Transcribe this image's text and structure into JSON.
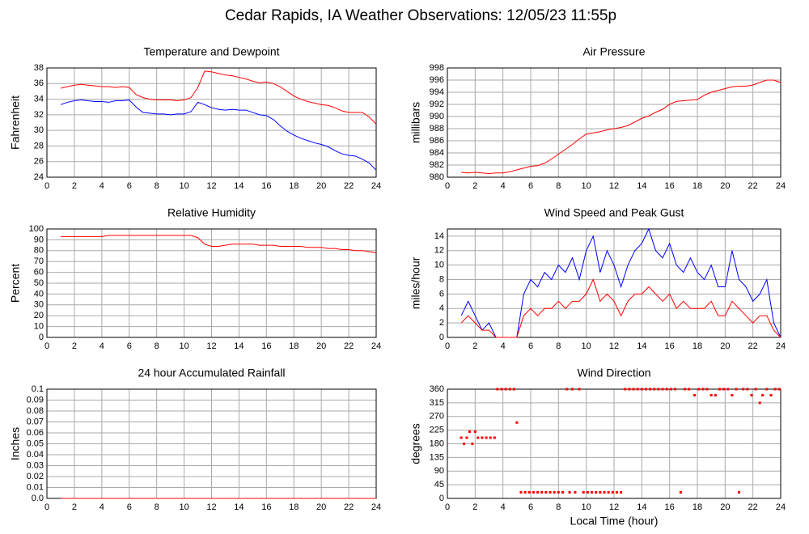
{
  "title": "Cedar Rapids, IA Weather Observations: 12/05/23 11:55p",
  "chart_data": [
    {
      "type": "line",
      "title": "Temperature and Dewpoint",
      "y_label": "Fahrenheit",
      "x": [
        1,
        1.5,
        2,
        2.5,
        3,
        3.5,
        4,
        4.5,
        5,
        5.5,
        6,
        6.5,
        7,
        7.5,
        8,
        8.5,
        9,
        9.5,
        10,
        10.5,
        11,
        11.5,
        12,
        12.5,
        13,
        13.5,
        14,
        14.5,
        15,
        15.5,
        16,
        16.5,
        17,
        17.5,
        18,
        18.5,
        19,
        19.5,
        20,
        20.5,
        21,
        21.5,
        22,
        22.5,
        23,
        23.5,
        24
      ],
      "series": [
        {
          "color": "#ff0000",
          "values": [
            35.4,
            35.6,
            35.8,
            35.9,
            35.8,
            35.7,
            35.6,
            35.6,
            35.5,
            35.6,
            35.5,
            34.6,
            34.2,
            34.0,
            33.9,
            33.9,
            33.9,
            33.8,
            33.9,
            34.2,
            35.5,
            37.6,
            37.5,
            37.3,
            37.1,
            37.0,
            36.8,
            36.6,
            36.3,
            36.1,
            36.2,
            36.0,
            35.6,
            35.0,
            34.4,
            34.0,
            33.7,
            33.5,
            33.3,
            33.2,
            32.9,
            32.5,
            32.3,
            32.3,
            32.3,
            31.7,
            30.8
          ]
        },
        {
          "color": "#0000ff",
          "values": [
            33.3,
            33.6,
            33.8,
            33.9,
            33.8,
            33.7,
            33.7,
            33.6,
            33.8,
            33.8,
            33.9,
            33.0,
            32.3,
            32.2,
            32.1,
            32.1,
            32.0,
            32.1,
            32.1,
            32.4,
            33.6,
            33.3,
            32.9,
            32.7,
            32.6,
            32.7,
            32.6,
            32.6,
            32.3,
            32.0,
            31.9,
            31.4,
            30.6,
            29.9,
            29.4,
            29.0,
            28.7,
            28.4,
            28.2,
            27.9,
            27.4,
            27.0,
            26.8,
            26.7,
            26.3,
            25.8,
            24.9
          ]
        }
      ],
      "xlim": [
        0,
        24
      ],
      "xticks": [
        0,
        2,
        4,
        6,
        8,
        10,
        12,
        14,
        16,
        18,
        20,
        22,
        24
      ],
      "ylim": [
        24,
        38
      ],
      "yticks": [
        24,
        26,
        28,
        30,
        32,
        34,
        36,
        38
      ],
      "grid": true
    },
    {
      "type": "line",
      "title": "Air Pressure",
      "y_label": "millibars",
      "x": [
        1,
        1.5,
        2,
        2.5,
        3,
        3.5,
        4,
        4.5,
        5,
        5.5,
        6,
        6.5,
        7,
        7.5,
        8,
        8.5,
        9,
        9.5,
        10,
        10.5,
        11,
        11.5,
        12,
        12.5,
        13,
        13.5,
        14,
        14.5,
        15,
        15.5,
        16,
        16.5,
        17,
        17.5,
        18,
        18.5,
        19,
        19.5,
        20,
        20.5,
        21,
        21.5,
        22,
        22.5,
        23,
        23.5,
        24
      ],
      "series": [
        {
          "color": "#ff0000",
          "values": [
            980.8,
            980.7,
            980.8,
            980.7,
            980.6,
            980.7,
            980.7,
            980.9,
            981.2,
            981.5,
            981.8,
            981.9,
            982.3,
            983.0,
            983.8,
            984.6,
            985.4,
            986.3,
            987.1,
            987.3,
            987.5,
            987.8,
            988.0,
            988.2,
            988.5,
            989.1,
            989.7,
            990.1,
            990.7,
            991.2,
            992.0,
            992.5,
            992.6,
            992.7,
            992.8,
            993.5,
            994.0,
            994.3,
            994.6,
            994.9,
            995.0,
            995.0,
            995.2,
            995.6,
            996.0,
            996.0,
            995.6
          ]
        }
      ],
      "xlim": [
        0,
        24
      ],
      "xticks": [
        0,
        2,
        4,
        6,
        8,
        10,
        12,
        14,
        16,
        18,
        20,
        22,
        24
      ],
      "ylim": [
        980,
        998
      ],
      "yticks": [
        980,
        982,
        984,
        986,
        988,
        990,
        992,
        994,
        996,
        998
      ],
      "grid": true
    },
    {
      "type": "line",
      "title": "Relative Humidity",
      "y_label": "Percent",
      "x": [
        1,
        1.5,
        2,
        2.5,
        3,
        3.5,
        4,
        4.5,
        5,
        5.5,
        6,
        6.5,
        7,
        7.5,
        8,
        8.5,
        9,
        9.5,
        10,
        10.5,
        11,
        11.5,
        12,
        12.5,
        13,
        13.5,
        14,
        14.5,
        15,
        15.5,
        16,
        16.5,
        17,
        17.5,
        18,
        18.5,
        19,
        19.5,
        20,
        20.5,
        21,
        21.5,
        22,
        22.5,
        23,
        23.5,
        24
      ],
      "series": [
        {
          "color": "#ff0000",
          "values": [
            93,
            93,
            93,
            93,
            93,
            93,
            93,
            94,
            94,
            94,
            94,
            94,
            94,
            94,
            94,
            94,
            94,
            94,
            94,
            94,
            92,
            86,
            84,
            84,
            85,
            86,
            86,
            86,
            86,
            85,
            85,
            85,
            84,
            84,
            84,
            84,
            83,
            83,
            83,
            82,
            82,
            81,
            81,
            80,
            80,
            79,
            78
          ]
        }
      ],
      "xlim": [
        0,
        24
      ],
      "xticks": [
        0,
        2,
        4,
        6,
        8,
        10,
        12,
        14,
        16,
        18,
        20,
        22,
        24
      ],
      "ylim": [
        0,
        100
      ],
      "yticks": [
        0,
        10,
        20,
        30,
        40,
        50,
        60,
        70,
        80,
        90,
        100
      ],
      "grid": true
    },
    {
      "type": "line",
      "title": "Wind Speed and Peak Gust",
      "y_label": "miles/hour",
      "x": [
        1,
        1.5,
        2,
        2.5,
        3,
        3.5,
        4,
        4.5,
        5,
        5.5,
        6,
        6.5,
        7,
        7.5,
        8,
        8.5,
        9,
        9.5,
        10,
        10.5,
        11,
        11.5,
        12,
        12.5,
        13,
        13.5,
        14,
        14.5,
        15,
        15.5,
        16,
        16.5,
        17,
        17.5,
        18,
        18.5,
        19,
        19.5,
        20,
        20.5,
        21,
        21.5,
        22,
        22.5,
        23,
        23.5,
        24
      ],
      "series": [
        {
          "color": "#0000ff",
          "values": [
            3,
            5,
            3,
            1,
            2,
            0,
            0,
            0,
            0,
            6,
            8,
            7,
            9,
            8,
            10,
            9,
            11,
            8,
            12,
            14,
            9,
            12,
            10,
            7,
            10,
            12,
            13,
            15,
            12,
            11,
            13,
            10,
            9,
            11,
            9,
            8,
            10,
            7,
            7,
            12,
            8,
            7,
            5,
            6,
            8,
            2,
            0
          ]
        },
        {
          "color": "#ff0000",
          "values": [
            2,
            3,
            2,
            1,
            1,
            0,
            0,
            0,
            0,
            3,
            4,
            3,
            4,
            4,
            5,
            4,
            5,
            5,
            6,
            8,
            5,
            6,
            5,
            3,
            5,
            6,
            6,
            7,
            6,
            5,
            6,
            4,
            5,
            4,
            4,
            4,
            5,
            3,
            3,
            5,
            4,
            3,
            2,
            3,
            3,
            1,
            0
          ]
        }
      ],
      "xlim": [
        0,
        24
      ],
      "xticks": [
        0,
        2,
        4,
        6,
        8,
        10,
        12,
        14,
        16,
        18,
        20,
        22,
        24
      ],
      "ylim": [
        0,
        15
      ],
      "yticks": [
        0,
        2,
        4,
        6,
        8,
        10,
        12,
        14
      ],
      "grid": true
    },
    {
      "type": "line",
      "title": "24 hour Accumulated Rainfall",
      "y_label": "Inches",
      "x": [
        1,
        24
      ],
      "series": [
        {
          "color": "#ff0000",
          "values": [
            0,
            0
          ]
        }
      ],
      "xlim": [
        0,
        24
      ],
      "xticks": [
        0,
        2,
        4,
        6,
        8,
        10,
        12,
        14,
        16,
        18,
        20,
        22,
        24
      ],
      "ylim": [
        0,
        0.1
      ],
      "yticks": [
        {
          "value": 0,
          "label": "0.0"
        },
        0.01,
        0.02,
        0.03,
        0.04,
        0.05,
        0.06,
        0.07,
        0.08,
        0.09,
        0.1
      ],
      "grid": true
    },
    {
      "type": "scatter",
      "title": "Wind Direction",
      "y_label": "degrees",
      "x_label": "Local Time (hour)",
      "x": [
        1.0,
        1.2,
        1.4,
        1.6,
        1.8,
        2.0,
        2.2,
        2.5,
        2.8,
        3.1,
        3.4,
        3.6,
        3.9,
        4.2,
        4.5,
        4.8,
        5.0,
        5.3,
        5.6,
        5.9,
        6.2,
        6.5,
        6.8,
        7.1,
        7.4,
        7.7,
        8.0,
        8.3,
        8.6,
        8.8,
        9.0,
        9.2,
        9.5,
        9.8,
        10.1,
        10.4,
        10.7,
        11.0,
        11.3,
        11.6,
        11.9,
        12.2,
        12.5,
        12.8,
        13.1,
        13.4,
        13.7,
        14.0,
        14.3,
        14.6,
        14.9,
        15.2,
        15.5,
        15.8,
        16.1,
        16.4,
        16.8,
        17.1,
        17.4,
        17.8,
        18.1,
        18.4,
        18.7,
        19.0,
        19.3,
        19.6,
        19.9,
        20.2,
        20.5,
        20.8,
        21.0,
        21.3,
        21.6,
        21.9,
        22.2,
        22.5,
        22.7,
        23.0,
        23.3,
        23.6,
        23.9
      ],
      "series": [
        {
          "color": "#ff0000",
          "values": [
            200,
            180,
            200,
            220,
            180,
            220,
            200,
            200,
            200,
            200,
            200,
            360,
            360,
            360,
            360,
            360,
            250,
            20,
            20,
            20,
            20,
            20,
            20,
            20,
            20,
            20,
            20,
            20,
            360,
            20,
            360,
            20,
            360,
            20,
            20,
            20,
            20,
            20,
            20,
            20,
            20,
            20,
            20,
            360,
            360,
            360,
            360,
            360,
            360,
            360,
            360,
            360,
            360,
            360,
            360,
            360,
            20,
            360,
            360,
            340,
            360,
            360,
            360,
            340,
            340,
            360,
            360,
            360,
            340,
            360,
            20,
            360,
            360,
            340,
            360,
            315,
            340,
            360,
            340,
            360,
            360
          ]
        }
      ],
      "xlim": [
        0,
        24
      ],
      "xticks": [
        0,
        2,
        4,
        6,
        8,
        10,
        12,
        14,
        16,
        18,
        20,
        22,
        24
      ],
      "ylim": [
        0,
        360
      ],
      "yticks": [
        0,
        45,
        90,
        135,
        180,
        225,
        270,
        315,
        360
      ],
      "grid": true
    }
  ]
}
